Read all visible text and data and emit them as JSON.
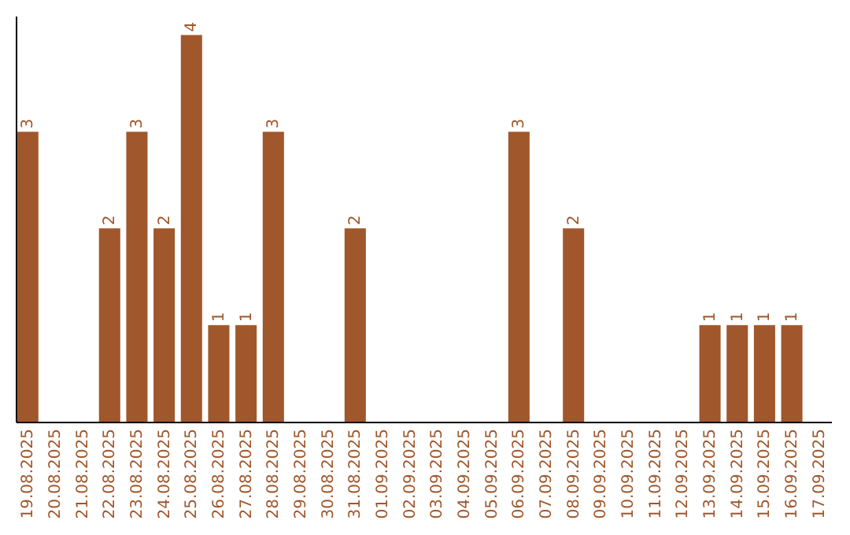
{
  "chart_data": {
    "type": "bar",
    "categories": [
      "19.08.2025",
      "20.08.2025",
      "21.08.2025",
      "22.08.2025",
      "23.08.2025",
      "24.08.2025",
      "25.08.2025",
      "26.08.2025",
      "27.08.2025",
      "28.08.2025",
      "29.08.2025",
      "30.08.2025",
      "31.08.2025",
      "01.09.2025",
      "02.09.2025",
      "03.09.2025",
      "04.09.2025",
      "05.09.2025",
      "06.09.2025",
      "07.09.2025",
      "08.09.2025",
      "09.09.2025",
      "10.09.2025",
      "11.09.2025",
      "12.09.2025",
      "13.09.2025",
      "14.09.2025",
      "15.09.2025",
      "16.09.2025",
      "17.09.2025"
    ],
    "values": [
      3,
      0,
      0,
      2,
      3,
      2,
      4,
      1,
      1,
      3,
      0,
      0,
      2,
      0,
      0,
      0,
      0,
      0,
      3,
      0,
      2,
      0,
      0,
      0,
      0,
      1,
      1,
      1,
      1,
      0
    ],
    "value_labels": [
      "3",
      null,
      null,
      "2",
      "3",
      "2",
      "4",
      "1",
      "1",
      "3",
      null,
      null,
      "2",
      null,
      null,
      null,
      null,
      null,
      "3",
      null,
      "2",
      null,
      null,
      null,
      null,
      "1",
      "1",
      "1",
      "1",
      null
    ],
    "color": "#a0572b",
    "ylim": [
      0,
      4.2
    ]
  }
}
